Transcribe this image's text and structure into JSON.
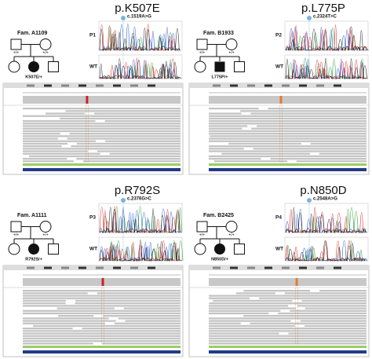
{
  "panels": [
    {
      "title": "p.K507E",
      "family": "Fam. A1109",
      "variant": "c.1519A>G",
      "patient": "P1",
      "wt": "WT",
      "genotypes": {
        "father": "+/+",
        "mother": "+/+",
        "proband": "K507E/+"
      }
    },
    {
      "title": "p.L775P",
      "family": "Fam. B1933",
      "variant": "c.2324T>C",
      "patient": "P2",
      "wt": "WT",
      "genotypes": {
        "father": "+/+",
        "mother": "+/+",
        "proband": "L775P/+"
      }
    },
    {
      "title": "p.R792S",
      "family": "Fam. A1111",
      "variant": "c.2376G>C",
      "patient": "P3",
      "wt": "WT",
      "genotypes": {
        "father": "+/+",
        "mother": "+/+",
        "proband": "R792S/+"
      }
    },
    {
      "title": "p.N850D",
      "family": "Fam. B2425",
      "variant": "c.2548A>G",
      "patient": "P4",
      "wt": "WT",
      "genotypes": {
        "father": "+/+",
        "mother": "+/+",
        "proband": "N850D/+"
      }
    }
  ]
}
